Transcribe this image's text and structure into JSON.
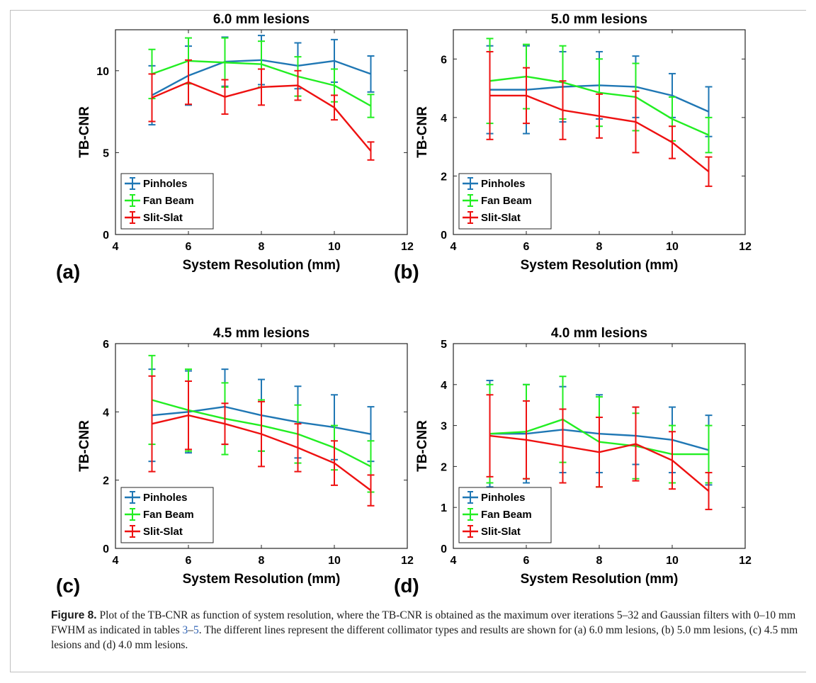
{
  "colors": {
    "pinholes": "#1f77b4",
    "fan_beam": "#22ee22",
    "slit_slat": "#ee1111"
  },
  "caption": {
    "label": "Figure 8.",
    "part1": " Plot of the TB-CNR as function of system resolution, where the TB-CNR is obtained as the maximum over iterations 5–32 and Gaussian filters with 0–10 mm FWHM as indicated in tables ",
    "ref_a": "3",
    "dash": "–",
    "ref_b": "5",
    "part2": ". The different lines represent the different collimator types and results are shown for (a) 6.0 mm lesions, (b) 5.0 mm lesions, (c) 4.5 mm lesions and (d) 4.0 mm lesions."
  },
  "chart_data": [
    {
      "type": "line",
      "panel_label": "(a)",
      "title": "6.0 mm lesions",
      "xlabel": "System Resolution (mm)",
      "ylabel": "TB-CNR",
      "xlim": [
        4,
        12
      ],
      "ylim": [
        0,
        12.5
      ],
      "xticks": [
        4,
        6,
        8,
        10,
        12
      ],
      "yticks": [
        0,
        5,
        10
      ],
      "legend": "bottom-left",
      "x": [
        5,
        6,
        7,
        8,
        9,
        10,
        11
      ],
      "series": [
        {
          "name": "Pinholes",
          "key": "pinholes",
          "values": [
            8.5,
            9.7,
            10.55,
            10.65,
            10.3,
            10.6,
            9.8
          ],
          "err": [
            1.8,
            1.8,
            1.5,
            1.5,
            1.4,
            1.3,
            1.1
          ]
        },
        {
          "name": "Fan Beam",
          "key": "fan_beam",
          "values": [
            9.8,
            10.6,
            10.5,
            10.4,
            9.65,
            9.1,
            7.85
          ],
          "err": [
            1.5,
            1.4,
            1.5,
            1.4,
            1.2,
            1.0,
            0.7
          ]
        },
        {
          "name": "Slit-Slat",
          "key": "slit_slat",
          "values": [
            8.35,
            9.3,
            8.4,
            9.0,
            9.1,
            7.75,
            5.1
          ],
          "err": [
            1.45,
            1.35,
            1.05,
            1.1,
            0.9,
            0.75,
            0.55
          ]
        }
      ]
    },
    {
      "type": "line",
      "panel_label": "(b)",
      "title": "5.0 mm lesions",
      "xlabel": "System Resolution (mm)",
      "ylabel": "TB-CNR",
      "xlim": [
        4,
        12
      ],
      "ylim": [
        0,
        7
      ],
      "xticks": [
        4,
        6,
        8,
        10,
        12
      ],
      "yticks": [
        0,
        2,
        4,
        6
      ],
      "legend": "bottom-left",
      "x": [
        5,
        6,
        7,
        8,
        9,
        10,
        11
      ],
      "series": [
        {
          "name": "Pinholes",
          "key": "pinholes",
          "values": [
            4.95,
            4.95,
            5.05,
            5.1,
            5.05,
            4.75,
            4.2
          ],
          "err": [
            1.5,
            1.5,
            1.2,
            1.15,
            1.05,
            0.75,
            0.85
          ]
        },
        {
          "name": "Fan Beam",
          "key": "fan_beam",
          "values": [
            5.25,
            5.4,
            5.2,
            4.85,
            4.7,
            3.95,
            3.4
          ],
          "err": [
            1.45,
            1.1,
            1.25,
            1.15,
            1.15,
            0.75,
            0.6
          ]
        },
        {
          "name": "Slit-Slat",
          "key": "slit_slat",
          "values": [
            4.75,
            4.75,
            4.25,
            4.05,
            3.85,
            3.15,
            2.15
          ],
          "err": [
            1.5,
            0.95,
            1.0,
            0.75,
            1.05,
            0.55,
            0.5
          ]
        }
      ]
    },
    {
      "type": "line",
      "panel_label": "(c)",
      "title": "4.5 mm lesions",
      "xlabel": "System Resolution (mm)",
      "ylabel": "TB-CNR",
      "xlim": [
        4,
        12
      ],
      "ylim": [
        0,
        6
      ],
      "xticks": [
        4,
        6,
        8,
        10,
        12
      ],
      "yticks": [
        0,
        2,
        4,
        6
      ],
      "legend": "bottom-left",
      "x": [
        5,
        6,
        7,
        8,
        9,
        10,
        11
      ],
      "series": [
        {
          "name": "Pinholes",
          "key": "pinholes",
          "values": [
            3.9,
            4.0,
            4.15,
            3.9,
            3.7,
            3.55,
            3.35
          ],
          "err": [
            1.35,
            1.2,
            1.1,
            1.05,
            1.05,
            0.95,
            0.8
          ]
        },
        {
          "name": "Fan Beam",
          "key": "fan_beam",
          "values": [
            4.35,
            4.05,
            3.8,
            3.6,
            3.35,
            2.95,
            2.4
          ],
          "err": [
            1.3,
            1.2,
            1.05,
            0.75,
            0.85,
            0.65,
            0.75
          ]
        },
        {
          "name": "Slit-Slat",
          "key": "slit_slat",
          "values": [
            3.65,
            3.9,
            3.65,
            3.35,
            2.95,
            2.5,
            1.7
          ],
          "err": [
            1.4,
            1.0,
            0.6,
            0.95,
            0.7,
            0.65,
            0.45
          ]
        }
      ]
    },
    {
      "type": "line",
      "panel_label": "(d)",
      "title": "4.0 mm lesions",
      "xlabel": "System Resolution (mm)",
      "ylabel": "TB-CNR",
      "xlim": [
        4,
        12
      ],
      "ylim": [
        0,
        5
      ],
      "xticks": [
        4,
        6,
        8,
        10,
        12
      ],
      "yticks": [
        0,
        1,
        2,
        3,
        4,
        5
      ],
      "legend": "bottom-left",
      "x": [
        5,
        6,
        7,
        8,
        9,
        10,
        11
      ],
      "series": [
        {
          "name": "Pinholes",
          "key": "pinholes",
          "values": [
            2.8,
            2.8,
            2.9,
            2.8,
            2.75,
            2.65,
            2.4
          ],
          "err": [
            1.3,
            1.2,
            1.05,
            0.95,
            0.7,
            0.8,
            0.85
          ]
        },
        {
          "name": "Fan Beam",
          "key": "fan_beam",
          "values": [
            2.8,
            2.85,
            3.15,
            2.6,
            2.5,
            2.3,
            2.3
          ],
          "err": [
            1.2,
            1.15,
            1.05,
            1.1,
            0.8,
            0.7,
            0.7
          ]
        },
        {
          "name": "Slit-Slat",
          "key": "slit_slat",
          "values": [
            2.75,
            2.65,
            2.5,
            2.35,
            2.55,
            2.15,
            1.4
          ],
          "err": [
            1.0,
            0.95,
            0.9,
            0.85,
            0.9,
            0.7,
            0.45
          ]
        }
      ]
    }
  ]
}
